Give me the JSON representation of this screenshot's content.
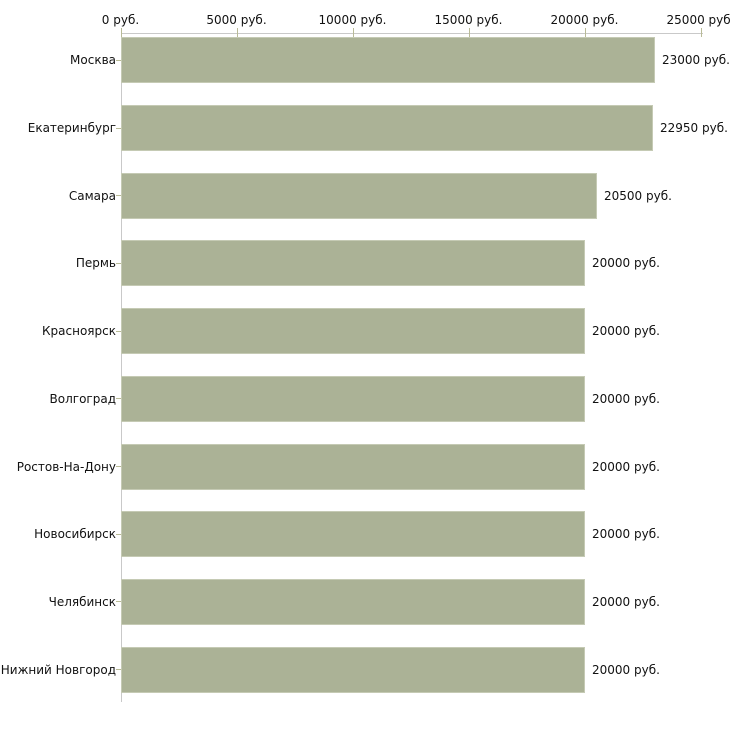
{
  "chart_data": {
    "type": "bar",
    "orientation": "horizontal",
    "title": "",
    "xlabel": "",
    "ylabel": "",
    "grid": false,
    "legend": false,
    "xlim": [
      0,
      25000
    ],
    "x_ticks": [
      {
        "value": 0,
        "label": "0 руб."
      },
      {
        "value": 5000,
        "label": "5000 руб."
      },
      {
        "value": 10000,
        "label": "10000 руб."
      },
      {
        "value": 15000,
        "label": "15000 руб."
      },
      {
        "value": 20000,
        "label": "20000 руб."
      },
      {
        "value": 25000,
        "label": "25000 руб."
      }
    ],
    "categories": [
      "Москва",
      "Екатеринбург",
      "Самара",
      "Пермь",
      "Красноярск",
      "Волгоград",
      "Ростов-На-Дону",
      "Новосибирск",
      "Челябинск",
      "Нижний Новгород"
    ],
    "values": [
      23000,
      22950,
      20500,
      20000,
      20000,
      20000,
      20000,
      20000,
      20000,
      20000
    ],
    "value_labels": [
      "23000 руб.",
      "22950 руб.",
      "20500 руб.",
      "20000 руб.",
      "20000 руб.",
      "20000 руб.",
      "20000 руб.",
      "20000 руб.",
      "20000 руб.",
      "20000 руб."
    ],
    "colors": {
      "bar_fill": "#abb296",
      "bar_border": "#c5cab4",
      "axis_line": "#c9c9c9",
      "tick_mark": "#b9bb97",
      "text": "#111111",
      "background": "#ffffff"
    }
  }
}
